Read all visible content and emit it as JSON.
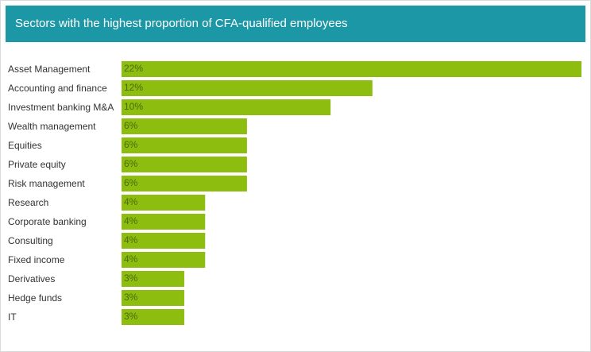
{
  "header": {
    "title": "Sectors with the highest proportion of CFA-qualified employees"
  },
  "colors": {
    "header_bg": "#1b97a6",
    "bar": "#8cbd0f",
    "bar_label": "#4f6a0a",
    "category_label": "#333333"
  },
  "chart_data": {
    "type": "bar",
    "orientation": "horizontal",
    "title": "Sectors with the highest proportion of CFA-qualified employees",
    "categories": [
      "Asset Management",
      "Accounting and finance",
      "Investment banking M&A",
      "Wealth management",
      "Equities",
      "Private equity",
      "Risk management",
      "Research",
      "Corporate banking",
      "Consulting",
      "Fixed income",
      "Derivatives",
      "Hedge funds",
      "IT"
    ],
    "values": [
      22,
      12,
      10,
      6,
      6,
      6,
      6,
      4,
      4,
      4,
      4,
      3,
      3,
      3
    ],
    "value_labels": [
      "22%",
      "12%",
      "10%",
      "6%",
      "6%",
      "6%",
      "6%",
      "4%",
      "4%",
      "4%",
      "4%",
      "3%",
      "3%",
      "3%"
    ],
    "xlim": [
      0,
      22
    ],
    "grid": false,
    "legend": "none"
  }
}
